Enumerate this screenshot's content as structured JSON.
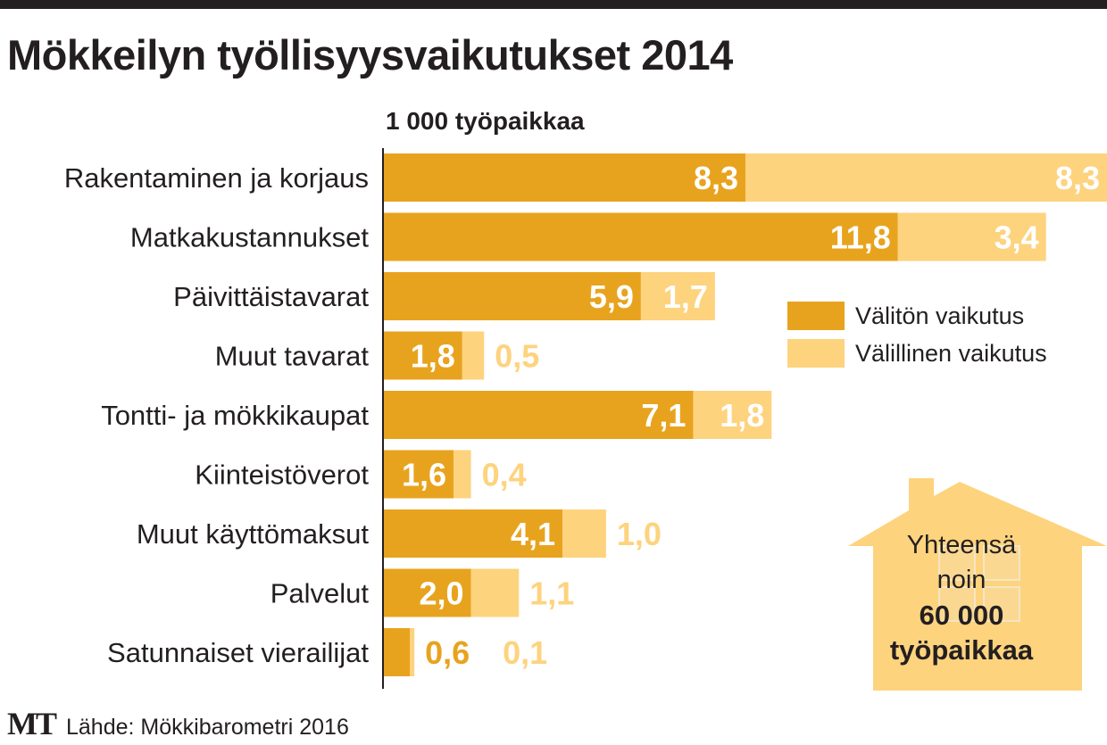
{
  "header": {
    "title": "Mökkeilyn työllisyysvaikutukset 2014",
    "unit": "1 000 työpaikkaa"
  },
  "legend": {
    "direct": "Välitön vaikutus",
    "indirect": "Välillinen vaikutus"
  },
  "total_box": {
    "line1": "Yhteensä",
    "line2": "noin",
    "line3": "60 000",
    "line4": "työpaikkaa"
  },
  "footer": {
    "logo": "MT",
    "source": "Lähde: Mökkibarometri 2016"
  },
  "colors": {
    "direct": "#e8a31e",
    "indirect": "#fdd37e",
    "text_dark": "#231f20",
    "label_white": "#ffffff"
  },
  "chart_data": {
    "type": "bar",
    "orientation": "horizontal",
    "stacked": true,
    "title": "Mökkeilyn työllisyysvaikutukset 2014",
    "xlabel": "1 000 työpaikkaa",
    "xlim": [
      0,
      16.6
    ],
    "categories": [
      "Rakentaminen ja korjaus",
      "Matkakustannukset",
      "Päivittäistavarat",
      "Muut tavarat",
      "Tontti- ja mökkikaupat",
      "Kiinteistöverot",
      "Muut käyttömaksut",
      "Palvelut",
      "Satunnaiset vierailijat"
    ],
    "series": [
      {
        "name": "Välitön vaikutus",
        "values": [
          8.3,
          11.8,
          5.9,
          1.8,
          7.1,
          1.6,
          4.1,
          2.0,
          0.6
        ],
        "labels": [
          "8,3",
          "11,8",
          "5,9",
          "1,8",
          "7,1",
          "1,6",
          "4,1",
          "2,0",
          "0,6"
        ]
      },
      {
        "name": "Välillinen vaikutus",
        "values": [
          8.3,
          3.4,
          1.7,
          0.5,
          1.8,
          0.4,
          1.0,
          1.1,
          0.1
        ],
        "labels": [
          "8,3",
          "3,4",
          "1,7",
          "0,5",
          "1,8",
          "0,4",
          "1,0",
          "1,1",
          "0,1"
        ]
      }
    ]
  }
}
